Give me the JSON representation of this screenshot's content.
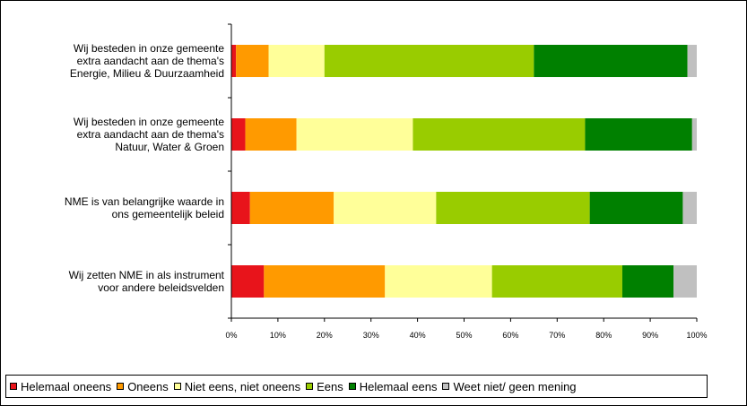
{
  "chart_data": {
    "type": "bar",
    "orientation": "horizontal",
    "stacked": "percent",
    "categories": [
      [
        "Wij besteden in onze gemeente",
        "extra aandacht aan de thema's",
        "Energie, Milieu & Duurzaamheid"
      ],
      [
        "Wij besteden in onze gemeente",
        "extra aandacht aan de thema's",
        "Natuur, Water & Groen"
      ],
      [
        "NME is van belangrijke waarde in",
        "ons gemeentelijk beleid"
      ],
      [
        "Wij zetten NME in als instrument",
        "voor andere beleidsvelden"
      ]
    ],
    "series": [
      {
        "name": "Helemaal oneens",
        "color": "#e8141b",
        "values": [
          1,
          3,
          4,
          7
        ]
      },
      {
        "name": "Oneens",
        "color": "#ff9a00",
        "values": [
          7,
          11,
          18,
          26
        ]
      },
      {
        "name": "Niet eens, niet oneens",
        "color": "#ffff99",
        "values": [
          12,
          25,
          22,
          23
        ]
      },
      {
        "name": "Eens",
        "color": "#99cc00",
        "values": [
          45,
          37,
          33,
          28
        ]
      },
      {
        "name": "Helemaal eens",
        "color": "#008000",
        "values": [
          33,
          23,
          20,
          11
        ]
      },
      {
        "name": "Weet niet/ geen mening",
        "color": "#c0c0c0",
        "values": [
          2,
          1,
          3,
          5
        ]
      }
    ],
    "xticks": [
      "0%",
      "10%",
      "20%",
      "30%",
      "40%",
      "50%",
      "60%",
      "70%",
      "80%",
      "90%",
      "100%"
    ],
    "xlim": [
      0,
      100
    ],
    "grid": false,
    "legend_position": "bottom"
  }
}
